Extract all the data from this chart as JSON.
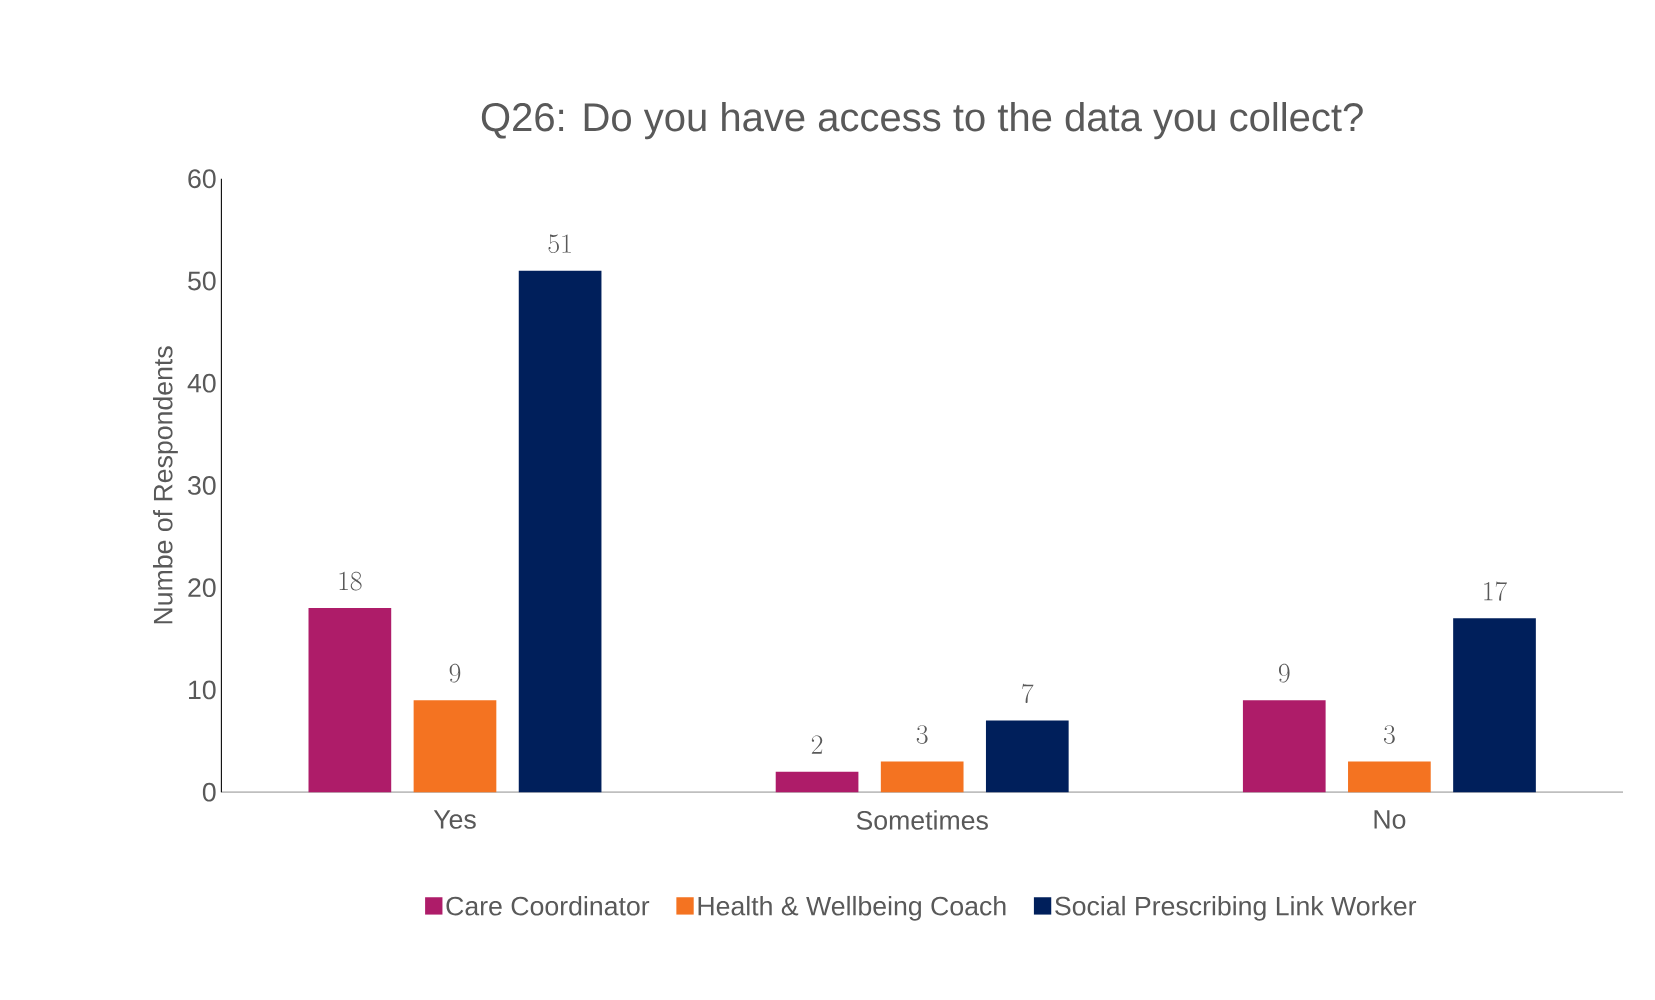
{
  "chart_data": {
    "type": "bar",
    "title": "Q26: Do you have access to the data you collect?",
    "ylabel": "Numbe of Respondents",
    "categories": [
      "Yes",
      "Sometimes",
      "No"
    ],
    "series": [
      {
        "name": "Care Coordinator",
        "color": "#ae1c69",
        "values": [
          18,
          2,
          9
        ]
      },
      {
        "name": "Health & Wellbeing Coach",
        "color": "#f47321",
        "values": [
          9,
          3,
          3
        ]
      },
      {
        "name": "Social Prescribing Link Worker",
        "color": "#001f5b",
        "values": [
          51,
          7,
          17
        ]
      }
    ],
    "ylim": [
      0,
      60
    ],
    "yticks": [
      0,
      10,
      20,
      30,
      40,
      50,
      60
    ],
    "data_labels": true,
    "legend": "bottom",
    "grid": false
  }
}
